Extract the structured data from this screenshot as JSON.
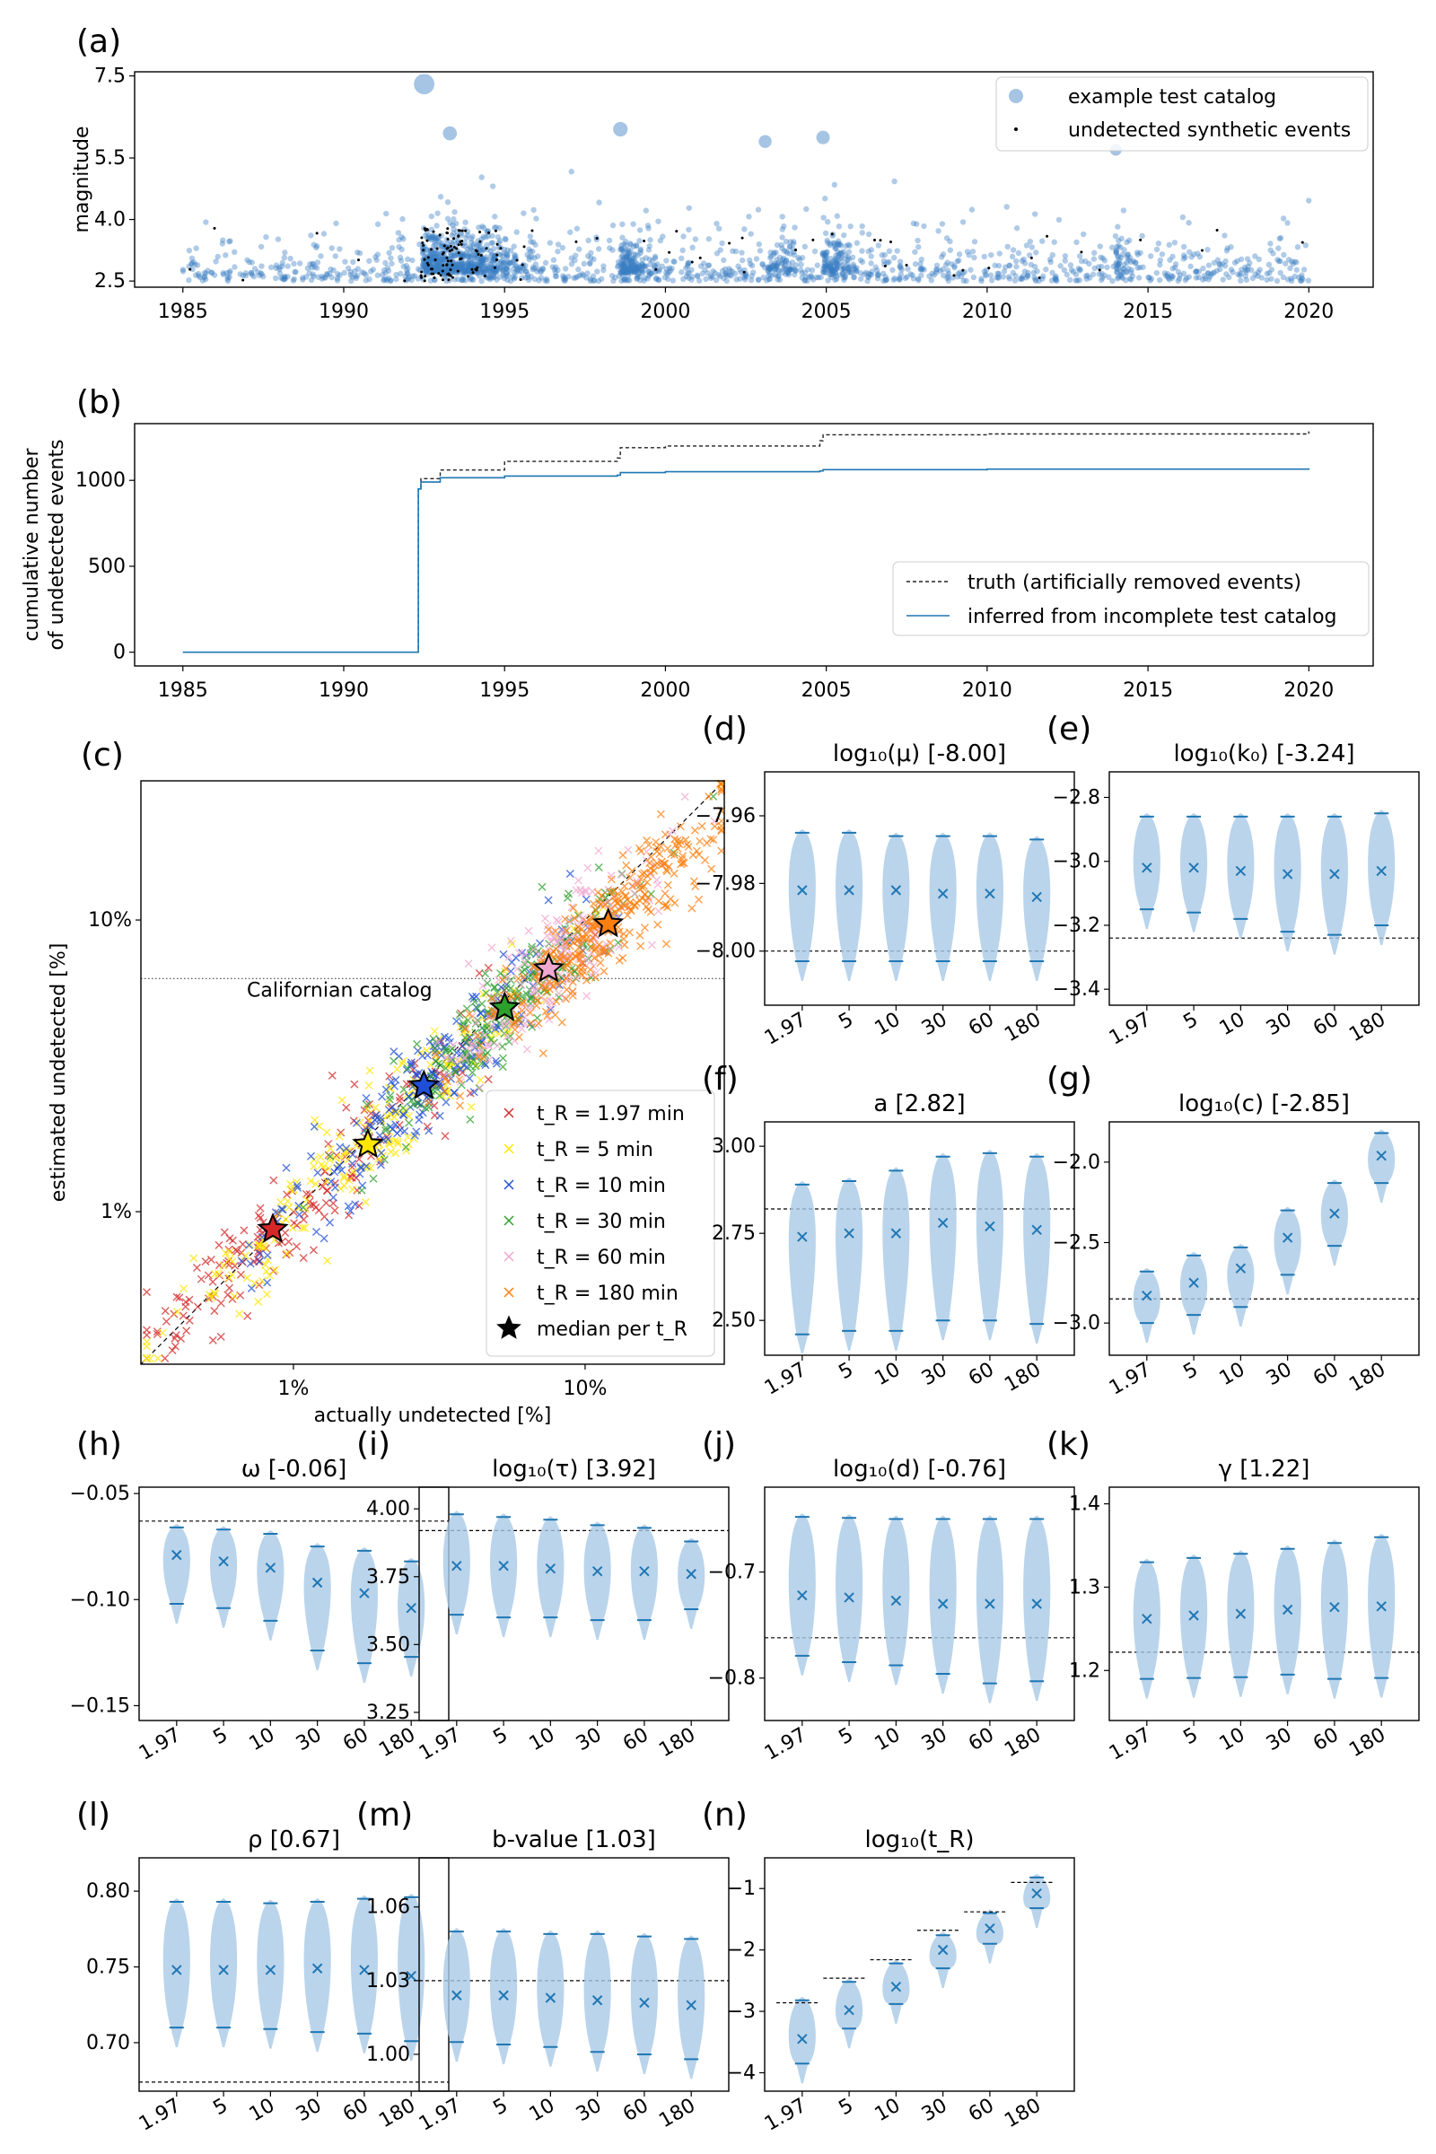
{
  "colors": {
    "scatter": "#3a7dc4",
    "violin": "#a9c9e6",
    "blue": "#1f77b4",
    "black": "#000000",
    "red": "#d62728",
    "yellow": "#ffe600",
    "blue2": "#1f4fd6",
    "green": "#2ca02c",
    "pink": "#f0a8d0",
    "orange": "#ff7f0e"
  },
  "xcats": [
    "1.97",
    "5",
    "10",
    "30",
    "60",
    "180"
  ],
  "chart_data": [
    {
      "id": "a",
      "type": "scatter",
      "panel_label": "(a)",
      "title": "",
      "xlabel": "",
      "ylabel": "magnitude",
      "xlim": [
        1983.5,
        2022
      ],
      "ylim": [
        2.35,
        7.6
      ],
      "xticks": [
        1985,
        1990,
        1995,
        2000,
        2005,
        2010,
        2015,
        2020
      ],
      "yticks": [
        2.5,
        4.0,
        5.5,
        7.5
      ],
      "ytick_labels": [
        "2.5",
        "4.0",
        "5.5",
        "7.5"
      ],
      "legend": {
        "position": "top-right",
        "entries": [
          "example test catalog",
          "undetected synthetic events"
        ]
      },
      "highlights": [
        {
          "x": 1992.5,
          "y": 7.3
        },
        {
          "x": 1993.3,
          "y": 6.1
        },
        {
          "x": 1998.6,
          "y": 6.2
        },
        {
          "x": 2003.1,
          "y": 5.9
        },
        {
          "x": 2004.9,
          "y": 6.0
        },
        {
          "x": 2014.0,
          "y": 5.7
        }
      ]
    },
    {
      "id": "b",
      "type": "line",
      "panel_label": "(b)",
      "title": "",
      "xlabel": "",
      "ylabel": "cumulative number\nof undetected events",
      "xlim": [
        1983.5,
        2022
      ],
      "ylim": [
        -80,
        1330
      ],
      "xticks": [
        1985,
        1990,
        1995,
        2000,
        2005,
        2010,
        2015,
        2020
      ],
      "yticks": [
        0,
        500,
        1000
      ],
      "legend": {
        "position": "bottom-right",
        "entries": [
          "truth (artificially removed events)",
          "inferred from incomplete test catalog"
        ]
      },
      "series": [
        {
          "name": "truth (artificially removed events)",
          "style": "dashed",
          "x": [
            1985,
            1992.3,
            1992.32,
            1992.4,
            1993.0,
            1995.0,
            1998.5,
            1998.6,
            2000,
            2004.8,
            2004.9,
            2010,
            2020
          ],
          "y": [
            0,
            0,
            950,
            1010,
            1060,
            1110,
            1130,
            1190,
            1200,
            1230,
            1265,
            1270,
            1285
          ]
        },
        {
          "name": "inferred from incomplete test catalog",
          "style": "solid",
          "x": [
            1985,
            1992.3,
            1992.32,
            1992.4,
            1993.0,
            1995.0,
            1998.5,
            1998.6,
            2000,
            2004.8,
            2004.9,
            2010,
            2020
          ],
          "y": [
            0,
            0,
            950,
            990,
            1015,
            1025,
            1030,
            1045,
            1050,
            1055,
            1062,
            1065,
            1070
          ]
        }
      ]
    },
    {
      "id": "c",
      "type": "scatter",
      "panel_label": "(c)",
      "title": "",
      "xlabel": "actually undetected [%]",
      "ylabel": "estimated undetected [%]",
      "scale": "log",
      "xlim": [
        0.3,
        30
      ],
      "ylim": [
        0.3,
        30
      ],
      "xticks": [
        1,
        10
      ],
      "xtick_labels": [
        "1%",
        "10%"
      ],
      "yticks": [
        1,
        10
      ],
      "ytick_labels": [
        "1%",
        "10%"
      ],
      "hline": {
        "y": 6.3,
        "label": "Californian catalog"
      },
      "legend": {
        "position": "bottom-right",
        "entries": [
          "t_R = 1.97 min",
          "t_R = 5 min",
          "t_R = 10 min",
          "t_R = 30 min",
          "t_R = 60 min",
          "t_R = 180 min",
          "median per t_R"
        ]
      },
      "groups": [
        {
          "name": "t_R = 1.97 min",
          "color": "#d62728",
          "center": [
            0.85,
            0.85
          ],
          "median": [
            0.85,
            0.87
          ]
        },
        {
          "name": "t_R = 5 min",
          "color": "#ffe600",
          "center": [
            1.8,
            1.7
          ],
          "median": [
            1.8,
            1.7
          ]
        },
        {
          "name": "t_R = 10 min",
          "color": "#1f4fd6",
          "center": [
            2.8,
            2.7
          ],
          "median": [
            2.8,
            2.7
          ]
        },
        {
          "name": "t_R = 30 min",
          "color": "#2ca02c",
          "center": [
            5.3,
            5.0
          ],
          "median": [
            5.3,
            5.0
          ]
        },
        {
          "name": "t_R = 60 min",
          "color": "#f0a8d0",
          "center": [
            7.5,
            6.8
          ],
          "median": [
            7.5,
            6.8
          ]
        },
        {
          "name": "t_R = 180 min",
          "color": "#ff7f0e",
          "center": [
            12,
            9.7
          ],
          "median": [
            12,
            9.7
          ]
        }
      ]
    },
    {
      "id": "d",
      "type": "violin",
      "panel_label": "(d)",
      "title": "log₁₀(μ) [-8.00]",
      "truth": -8.0,
      "ylim": [
        -8.016,
        -7.947
      ],
      "yticks": [
        -8.0,
        -7.98,
        -7.96
      ],
      "ytick_labels": [
        "−8.00",
        "−7.98",
        "−7.96"
      ],
      "categories": [
        "1.97",
        "5",
        "10",
        "30",
        "60",
        "180"
      ],
      "means": [
        -7.982,
        -7.982,
        -7.982,
        -7.983,
        -7.983,
        -7.984
      ],
      "mins": [
        -8.003,
        -8.003,
        -8.003,
        -8.003,
        -8.003,
        -8.003
      ],
      "maxs": [
        -7.965,
        -7.965,
        -7.966,
        -7.966,
        -7.966,
        -7.967
      ]
    },
    {
      "id": "e",
      "type": "violin",
      "panel_label": "(e)",
      "title": "log₁₀(k₀) [-3.24]",
      "truth": -3.24,
      "ylim": [
        -3.45,
        -2.72
      ],
      "yticks": [
        -3.4,
        -3.2,
        -3.0,
        -2.8
      ],
      "ytick_labels": [
        "−3.4",
        "−3.2",
        "−3.0",
        "−2.8"
      ],
      "categories": [
        "1.97",
        "5",
        "10",
        "30",
        "60",
        "180"
      ],
      "means": [
        -3.02,
        -3.02,
        -3.03,
        -3.04,
        -3.04,
        -3.03
      ],
      "mins": [
        -3.15,
        -3.16,
        -3.18,
        -3.22,
        -3.23,
        -3.2
      ],
      "maxs": [
        -2.86,
        -2.86,
        -2.86,
        -2.86,
        -2.86,
        -2.85
      ]
    },
    {
      "id": "f",
      "type": "violin",
      "panel_label": "(f)",
      "title": "a [2.82]",
      "truth": 2.82,
      "ylim": [
        2.4,
        3.07
      ],
      "yticks": [
        2.5,
        2.75,
        3.0
      ],
      "ytick_labels": [
        "2.50",
        "2.75",
        "3.00"
      ],
      "categories": [
        "1.97",
        "5",
        "10",
        "30",
        "60",
        "180"
      ],
      "means": [
        2.74,
        2.75,
        2.75,
        2.78,
        2.77,
        2.76
      ],
      "mins": [
        2.46,
        2.47,
        2.47,
        2.5,
        2.5,
        2.49
      ],
      "maxs": [
        2.89,
        2.9,
        2.93,
        2.97,
        2.98,
        2.97
      ]
    },
    {
      "id": "g",
      "type": "violin",
      "panel_label": "(g)",
      "title": "log₁₀(c) [-2.85]",
      "truth": -2.85,
      "ylim": [
        -3.2,
        -1.75
      ],
      "yticks": [
        -3.0,
        -2.5,
        -2.0
      ],
      "ytick_labels": [
        "−3.0",
        "−2.5",
        "−2.0"
      ],
      "categories": [
        "1.97",
        "5",
        "10",
        "30",
        "60",
        "180"
      ],
      "means": [
        -2.83,
        -2.75,
        -2.66,
        -2.47,
        -2.32,
        -1.96
      ],
      "mins": [
        -3.0,
        -2.95,
        -2.9,
        -2.7,
        -2.52,
        -2.13
      ],
      "maxs": [
        -2.68,
        -2.58,
        -2.53,
        -2.3,
        -2.13,
        -1.82
      ]
    },
    {
      "id": "h",
      "type": "violin",
      "panel_label": "(h)",
      "title": "ω [-0.06]",
      "truth": -0.063,
      "ylim": [
        -0.157,
        -0.047
      ],
      "yticks": [
        -0.15,
        -0.1,
        -0.05
      ],
      "ytick_labels": [
        "−0.15",
        "−0.10",
        "−0.05"
      ],
      "categories": [
        "1.97",
        "5",
        "10",
        "30",
        "60",
        "180"
      ],
      "means": [
        -0.079,
        -0.082,
        -0.085,
        -0.092,
        -0.097,
        -0.104
      ],
      "mins": [
        -0.102,
        -0.104,
        -0.11,
        -0.124,
        -0.13,
        -0.127
      ],
      "maxs": [
        -0.066,
        -0.067,
        -0.069,
        -0.075,
        -0.077,
        -0.082
      ]
    },
    {
      "id": "i",
      "type": "violin",
      "panel_label": "(i)",
      "title": "log₁₀(τ) [3.92]",
      "truth": 3.92,
      "ylim": [
        3.22,
        4.08
      ],
      "yticks": [
        3.25,
        3.5,
        3.75,
        4.0
      ],
      "ytick_labels": [
        "3.25",
        "3.50",
        "3.75",
        "4.00"
      ],
      "categories": [
        "1.97",
        "5",
        "10",
        "30",
        "60",
        "180"
      ],
      "means": [
        3.79,
        3.79,
        3.78,
        3.77,
        3.77,
        3.76
      ],
      "mins": [
        3.61,
        3.6,
        3.6,
        3.59,
        3.59,
        3.63
      ],
      "maxs": [
        3.98,
        3.97,
        3.96,
        3.94,
        3.93,
        3.88
      ]
    },
    {
      "id": "j",
      "type": "violin",
      "panel_label": "(j)",
      "title": "log₁₀(d) [-0.76]",
      "truth": -0.762,
      "ylim": [
        -0.84,
        -0.62
      ],
      "yticks": [
        -0.8,
        -0.7
      ],
      "ytick_labels": [
        "−0.8",
        "−0.7"
      ],
      "categories": [
        "1.97",
        "5",
        "10",
        "30",
        "60",
        "180"
      ],
      "means": [
        -0.722,
        -0.724,
        -0.727,
        -0.73,
        -0.73,
        -0.73
      ],
      "mins": [
        -0.779,
        -0.785,
        -0.788,
        -0.796,
        -0.805,
        -0.803
      ],
      "maxs": [
        -0.648,
        -0.649,
        -0.65,
        -0.65,
        -0.65,
        -0.65
      ]
    },
    {
      "id": "k",
      "type": "violin",
      "panel_label": "(k)",
      "title": "γ [1.22]",
      "truth": 1.222,
      "ylim": [
        1.14,
        1.42
      ],
      "yticks": [
        1.2,
        1.3,
        1.4
      ],
      "ytick_labels": [
        "1.2",
        "1.3",
        "1.4"
      ],
      "categories": [
        "1.97",
        "5",
        "10",
        "30",
        "60",
        "180"
      ],
      "means": [
        1.262,
        1.266,
        1.268,
        1.273,
        1.276,
        1.277
      ],
      "mins": [
        1.19,
        1.191,
        1.192,
        1.195,
        1.19,
        1.191
      ],
      "maxs": [
        1.33,
        1.335,
        1.34,
        1.346,
        1.353,
        1.36
      ]
    },
    {
      "id": "l",
      "type": "violin",
      "panel_label": "(l)",
      "title": "ρ [0.67]",
      "truth": 0.674,
      "ylim": [
        0.668,
        0.822
      ],
      "yticks": [
        0.7,
        0.75,
        0.8
      ],
      "ytick_labels": [
        "0.70",
        "0.75",
        "0.80"
      ],
      "categories": [
        "1.97",
        "5",
        "10",
        "30",
        "60",
        "180"
      ],
      "means": [
        0.748,
        0.748,
        0.748,
        0.749,
        0.748,
        0.744
      ],
      "mins": [
        0.71,
        0.71,
        0.709,
        0.707,
        0.706,
        0.701
      ],
      "maxs": [
        0.793,
        0.793,
        0.792,
        0.793,
        0.795,
        0.796
      ]
    },
    {
      "id": "m",
      "type": "violin",
      "panel_label": "(m)",
      "title": "b-value [1.03]",
      "truth": 1.03,
      "ylim": [
        0.985,
        1.08
      ],
      "yticks": [
        1.0,
        1.03,
        1.06
      ],
      "ytick_labels": [
        "1.00",
        "1.03",
        "1.06"
      ],
      "categories": [
        "1.97",
        "5",
        "10",
        "30",
        "60",
        "180"
      ],
      "means": [
        1.024,
        1.024,
        1.023,
        1.022,
        1.021,
        1.02
      ],
      "mins": [
        1.005,
        1.004,
        1.003,
        1.001,
        1.0,
        0.998
      ],
      "maxs": [
        1.05,
        1.05,
        1.049,
        1.049,
        1.048,
        1.047
      ]
    },
    {
      "id": "n",
      "type": "violin",
      "panel_label": "(n)",
      "title": "log₁₀(t_R)",
      "truth": null,
      "ylim": [
        -4.3,
        -0.5
      ],
      "yticks": [
        -4,
        -3,
        -2,
        -1
      ],
      "ytick_labels": [
        "−4",
        "−3",
        "−2",
        "−1"
      ],
      "categories": [
        "1.97",
        "5",
        "10",
        "30",
        "60",
        "180"
      ],
      "truths": [
        -2.86,
        -2.46,
        -2.16,
        -1.68,
        -1.38,
        -0.9
      ],
      "means": [
        -3.45,
        -2.98,
        -2.6,
        -2.0,
        -1.65,
        -1.08
      ],
      "mins": [
        -3.85,
        -3.28,
        -2.88,
        -2.3,
        -1.9,
        -1.32
      ],
      "maxs": [
        -2.82,
        -2.52,
        -2.22,
        -1.76,
        -1.4,
        -0.82
      ]
    }
  ]
}
